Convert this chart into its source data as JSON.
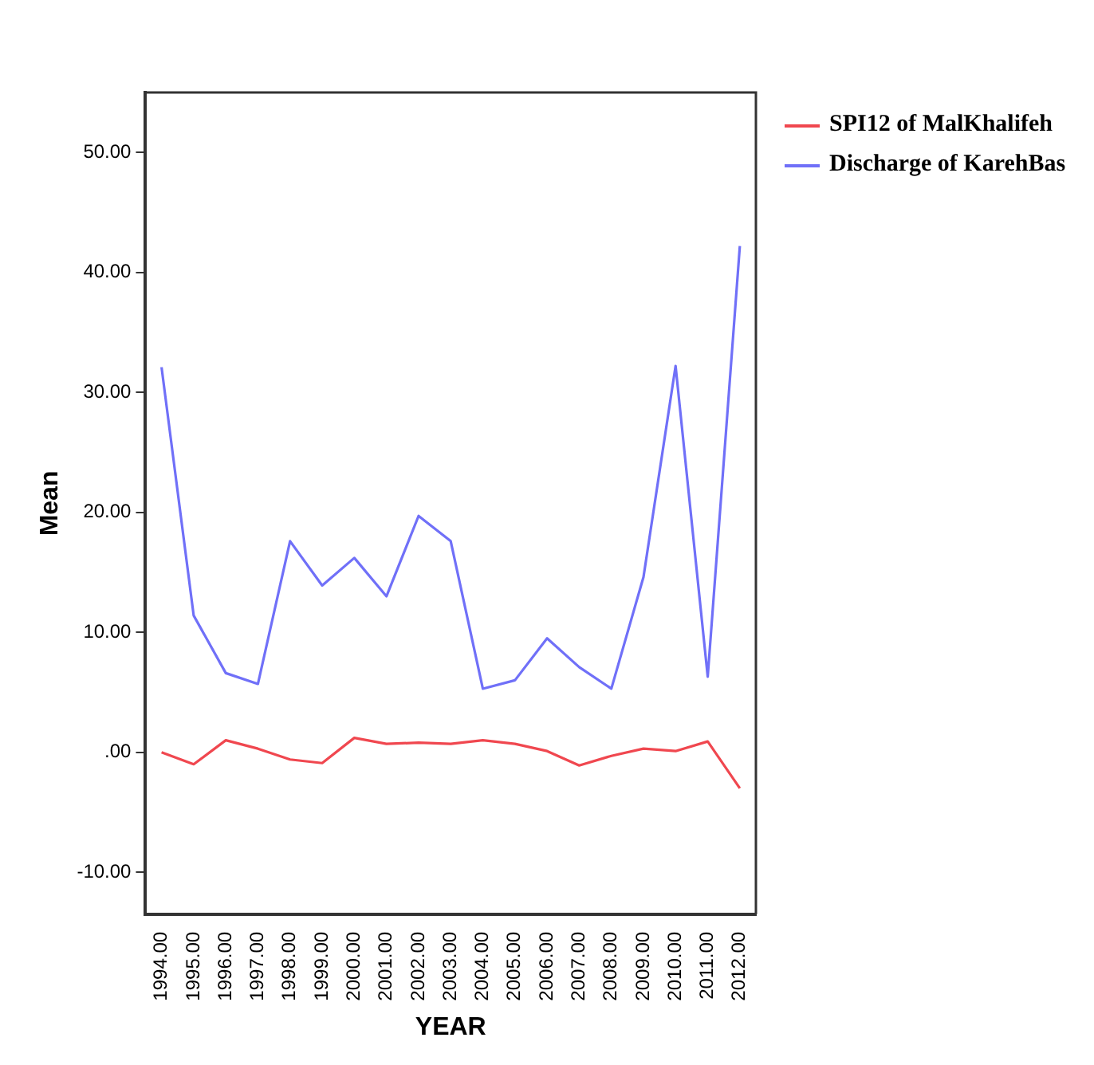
{
  "chart_data": {
    "type": "line",
    "xlabel": "YEAR",
    "ylabel": "Mean",
    "categories": [
      "1994.00",
      "1995.00",
      "1996.00",
      "1997.00",
      "1998.00",
      "1999.00",
      "2000.00",
      "2001.00",
      "2002.00",
      "2003.00",
      "2004.00",
      "2005.00",
      "2006.00",
      "2007.00",
      "2008.00",
      "2009.00",
      "2010.00",
      "2011.00",
      "2012.00"
    ],
    "series": [
      {
        "name": "SPI12 of MalKhalifeh",
        "color": "#f0474f",
        "values": [
          0,
          -1.0,
          1.0,
          0.3,
          -0.6,
          -0.9,
          1.2,
          0.7,
          0.8,
          0.7,
          1.0,
          0.7,
          0.1,
          -1.1,
          -0.3,
          0.3,
          0.1,
          0.9,
          -3.0
        ]
      },
      {
        "name": "Discharge of KarehBas",
        "color": "#7070f8",
        "values": [
          32.1,
          11.4,
          6.6,
          5.7,
          17.6,
          13.9,
          16.2,
          13.0,
          19.7,
          17.6,
          5.3,
          6.0,
          9.5,
          7.1,
          5.3,
          14.6,
          32.2,
          6.3,
          42.2
        ]
      }
    ],
    "ylim": [
      -13.5,
      55
    ],
    "yticks": [
      {
        "value": -10,
        "label": "-10.00"
      },
      {
        "value": 0,
        "label": ".00"
      },
      {
        "value": 10,
        "label": "10.00"
      },
      {
        "value": 20,
        "label": "20.00"
      },
      {
        "value": 30,
        "label": "30.00"
      },
      {
        "value": 40,
        "label": "40.00"
      },
      {
        "value": 50,
        "label": "50.00"
      }
    ],
    "grid": false,
    "legend": "top right",
    "marker": "none",
    "line_style": "solid"
  }
}
